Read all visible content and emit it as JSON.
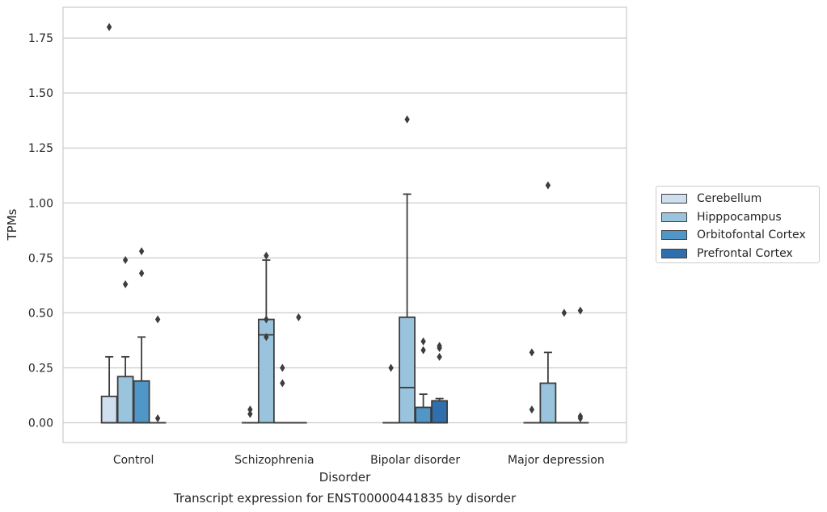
{
  "chart_data": {
    "type": "box",
    "title": "Transcript expression for ENST00000441835 by disorder",
    "xlabel": "Disorder",
    "ylabel": "TPMs",
    "ylim": [
      -0.09,
      1.89
    ],
    "yticks": [
      "0.00",
      "0.25",
      "0.50",
      "0.75",
      "1.00",
      "1.25",
      "1.50",
      "1.75"
    ],
    "categories": [
      "Control",
      "Schizophrenia",
      "Bipolar disorder",
      "Major depression"
    ],
    "grid": true,
    "legend_position": "right",
    "series": [
      {
        "name": "Cerebellum",
        "color": "#d0dfef",
        "boxes": [
          {
            "q1": 0.0,
            "median": 0.0,
            "q3": 0.12,
            "whisker_low": 0.0,
            "whisker_high": 0.3,
            "outliers": [
              1.8
            ]
          },
          {
            "q1": 0.0,
            "median": 0.0,
            "q3": 0.0,
            "whisker_low": 0.0,
            "whisker_high": 0.0,
            "outliers": [
              0.04,
              0.06
            ]
          },
          {
            "q1": 0.0,
            "median": 0.0,
            "q3": 0.0,
            "whisker_low": 0.0,
            "whisker_high": 0.0,
            "outliers": [
              0.25
            ]
          },
          {
            "q1": 0.0,
            "median": 0.0,
            "q3": 0.0,
            "whisker_low": 0.0,
            "whisker_high": 0.0,
            "outliers": [
              0.06,
              0.32
            ]
          }
        ]
      },
      {
        "name": "Hipppocampus",
        "color": "#9ac4dd",
        "boxes": [
          {
            "q1": 0.0,
            "median": 0.0,
            "q3": 0.21,
            "whisker_low": 0.0,
            "whisker_high": 0.3,
            "outliers": [
              0.63,
              0.74
            ]
          },
          {
            "q1": 0.0,
            "median": 0.4,
            "q3": 0.47,
            "whisker_low": 0.0,
            "whisker_high": 0.74,
            "outliers": [
              0.39,
              0.47,
              0.76
            ]
          },
          {
            "q1": 0.0,
            "median": 0.16,
            "q3": 0.48,
            "whisker_low": 0.0,
            "whisker_high": 1.04,
            "outliers": [
              1.38
            ]
          },
          {
            "q1": 0.0,
            "median": 0.0,
            "q3": 0.18,
            "whisker_low": 0.0,
            "whisker_high": 0.32,
            "outliers": [
              1.08
            ]
          }
        ]
      },
      {
        "name": "Orbitofontal Cortex",
        "color": "#5096c6",
        "boxes": [
          {
            "q1": 0.0,
            "median": 0.0,
            "q3": 0.19,
            "whisker_low": 0.0,
            "whisker_high": 0.39,
            "outliers": [
              0.68,
              0.78
            ]
          },
          {
            "q1": 0.0,
            "median": 0.0,
            "q3": 0.0,
            "whisker_low": 0.0,
            "whisker_high": 0.0,
            "outliers": [
              0.18,
              0.25
            ]
          },
          {
            "q1": 0.0,
            "median": 0.0,
            "q3": 0.07,
            "whisker_low": 0.0,
            "whisker_high": 0.13,
            "outliers": [
              0.33,
              0.37
            ]
          },
          {
            "q1": 0.0,
            "median": 0.0,
            "q3": 0.0,
            "whisker_low": 0.0,
            "whisker_high": 0.0,
            "outliers": [
              0.5
            ]
          }
        ]
      },
      {
        "name": "Prefrontal Cortex",
        "color": "#2f6fae",
        "boxes": [
          {
            "q1": 0.0,
            "median": 0.0,
            "q3": 0.0,
            "whisker_low": 0.0,
            "whisker_high": 0.0,
            "outliers": [
              0.02,
              0.47
            ]
          },
          {
            "q1": 0.0,
            "median": 0.0,
            "q3": 0.0,
            "whisker_low": 0.0,
            "whisker_high": 0.0,
            "outliers": [
              0.48
            ]
          },
          {
            "q1": 0.0,
            "median": 0.0,
            "q3": 0.1,
            "whisker_low": 0.0,
            "whisker_high": 0.11,
            "outliers": [
              0.3,
              0.34,
              0.35
            ]
          },
          {
            "q1": 0.0,
            "median": 0.0,
            "q3": 0.0,
            "whisker_low": 0.0,
            "whisker_high": 0.0,
            "outliers": [
              0.02,
              0.03,
              0.51
            ]
          }
        ]
      }
    ]
  }
}
